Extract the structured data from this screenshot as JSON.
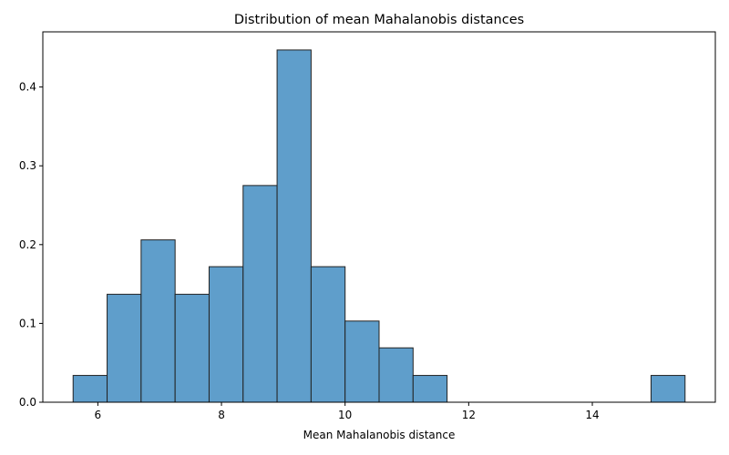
{
  "chart_data": {
    "type": "bar",
    "subtype": "histogram",
    "title": "Distribution of mean Mahalanobis distances",
    "xlabel": "Mean Mahalanobis distance",
    "ylabel": "",
    "bins": [
      {
        "x0": 5.6,
        "x1": 6.15,
        "value": 0.034
      },
      {
        "x0": 6.15,
        "x1": 6.7,
        "value": 0.137
      },
      {
        "x0": 6.7,
        "x1": 7.25,
        "value": 0.206
      },
      {
        "x0": 7.25,
        "x1": 7.8,
        "value": 0.137
      },
      {
        "x0": 7.8,
        "x1": 8.35,
        "value": 0.172
      },
      {
        "x0": 8.35,
        "x1": 8.9,
        "value": 0.275
      },
      {
        "x0": 8.9,
        "x1": 9.45,
        "value": 0.447
      },
      {
        "x0": 9.45,
        "x1": 10.0,
        "value": 0.172
      },
      {
        "x0": 10.0,
        "x1": 10.55,
        "value": 0.103
      },
      {
        "x0": 10.55,
        "x1": 11.1,
        "value": 0.069
      },
      {
        "x0": 11.1,
        "x1": 11.65,
        "value": 0.034
      },
      {
        "x0": 14.95,
        "x1": 15.5,
        "value": 0.034
      }
    ],
    "xlim": [
      5.11,
      15.99
    ],
    "ylim": [
      0,
      0.47
    ],
    "xticks": [
      6,
      8,
      10,
      12,
      14
    ],
    "yticks": [
      0.0,
      0.1,
      0.2,
      0.3,
      0.4
    ],
    "xtick_labels": [
      "6",
      "8",
      "10",
      "12",
      "14"
    ],
    "ytick_labels": [
      "0.0",
      "0.1",
      "0.2",
      "0.3",
      "0.4"
    ],
    "grid": false,
    "legend": false,
    "bar_color": "#5f9ecb",
    "bar_edge_color": "#222222"
  }
}
